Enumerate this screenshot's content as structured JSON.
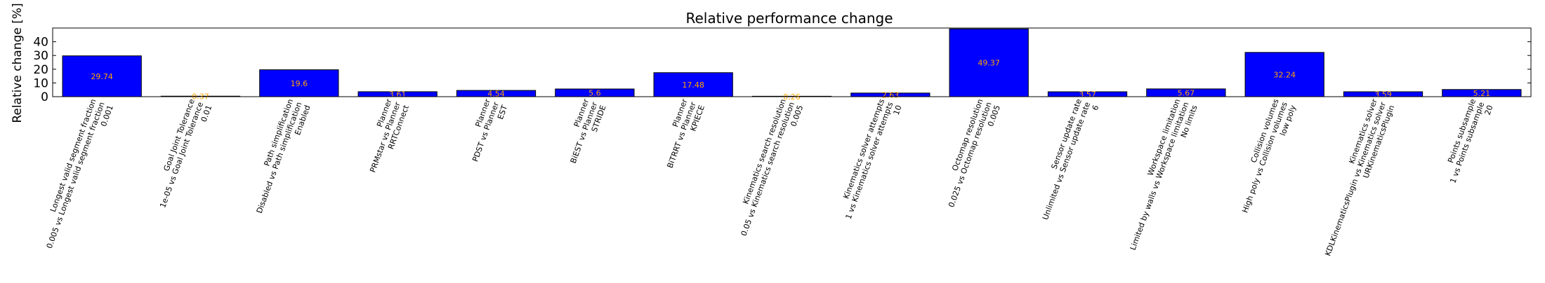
{
  "chart_data": {
    "type": "bar",
    "title": "Relative performance change",
    "xlabel": "",
    "ylabel": "Relative change [%]",
    "ylim": [
      0,
      50
    ],
    "yticks": [
      0,
      10,
      20,
      30,
      40
    ],
    "grid": false,
    "bar_color": "#0000ff",
    "label_color": "#ffa500",
    "categories": [
      [
        "Longest valid segment fraction",
        "0.005 vs Longest valid segment fraction",
        "0.001"
      ],
      [
        "Goal Joint Tolerance",
        "1e-05 vs Goal Joint Tolerance",
        "0.01"
      ],
      [
        "Path simplification",
        "Disabled vs Path simplification",
        "Enabled"
      ],
      [
        "Planner",
        "PRMstar vs Planner",
        "RRTConnect"
      ],
      [
        "Planner",
        "PDST vs Planner",
        "EST"
      ],
      [
        "Planner",
        "BiEST vs Planner",
        "STRIDE"
      ],
      [
        "Planner",
        "BiTRRT vs Planner",
        "KPIECE"
      ],
      [
        "Kinematics search resolution",
        "0.05 vs Kinematics search resolution",
        "0.005"
      ],
      [
        "Kinematics solver attempts",
        "1 vs Kinematics solver attempts",
        "10"
      ],
      [
        "Octomap resolution",
        "0.025 vs Octomap resolution",
        "0.005"
      ],
      [
        "Sensor update rate",
        "Unlimited vs Sensor update rate",
        "6"
      ],
      [
        "Workspace limitation",
        "Limited by walls vs Workspace limitation",
        "No limits"
      ],
      [
        "Collision volumes",
        "High poly vs Collision volumes",
        "low poly"
      ],
      [
        "Kinematics solver",
        "KDLKinematicsPlugin vs Kinematics solver",
        "URKinematicsPlugin"
      ],
      [
        "Points subsample",
        "1 vs Points subsample",
        "20"
      ]
    ],
    "values": [
      29.74,
      0.37,
      19.6,
      3.61,
      4.54,
      5.6,
      17.48,
      0.26,
      2.63,
      49.37,
      3.57,
      5.67,
      32.24,
      3.59,
      5.21
    ],
    "value_labels": [
      "29.74",
      "0.37",
      "19.6",
      "3.61",
      "4.54",
      "5.6",
      "17.48",
      "0.26",
      "2.63",
      "49.37",
      "3.57",
      "5.67",
      "32.24",
      "3.59",
      "5.21"
    ]
  }
}
